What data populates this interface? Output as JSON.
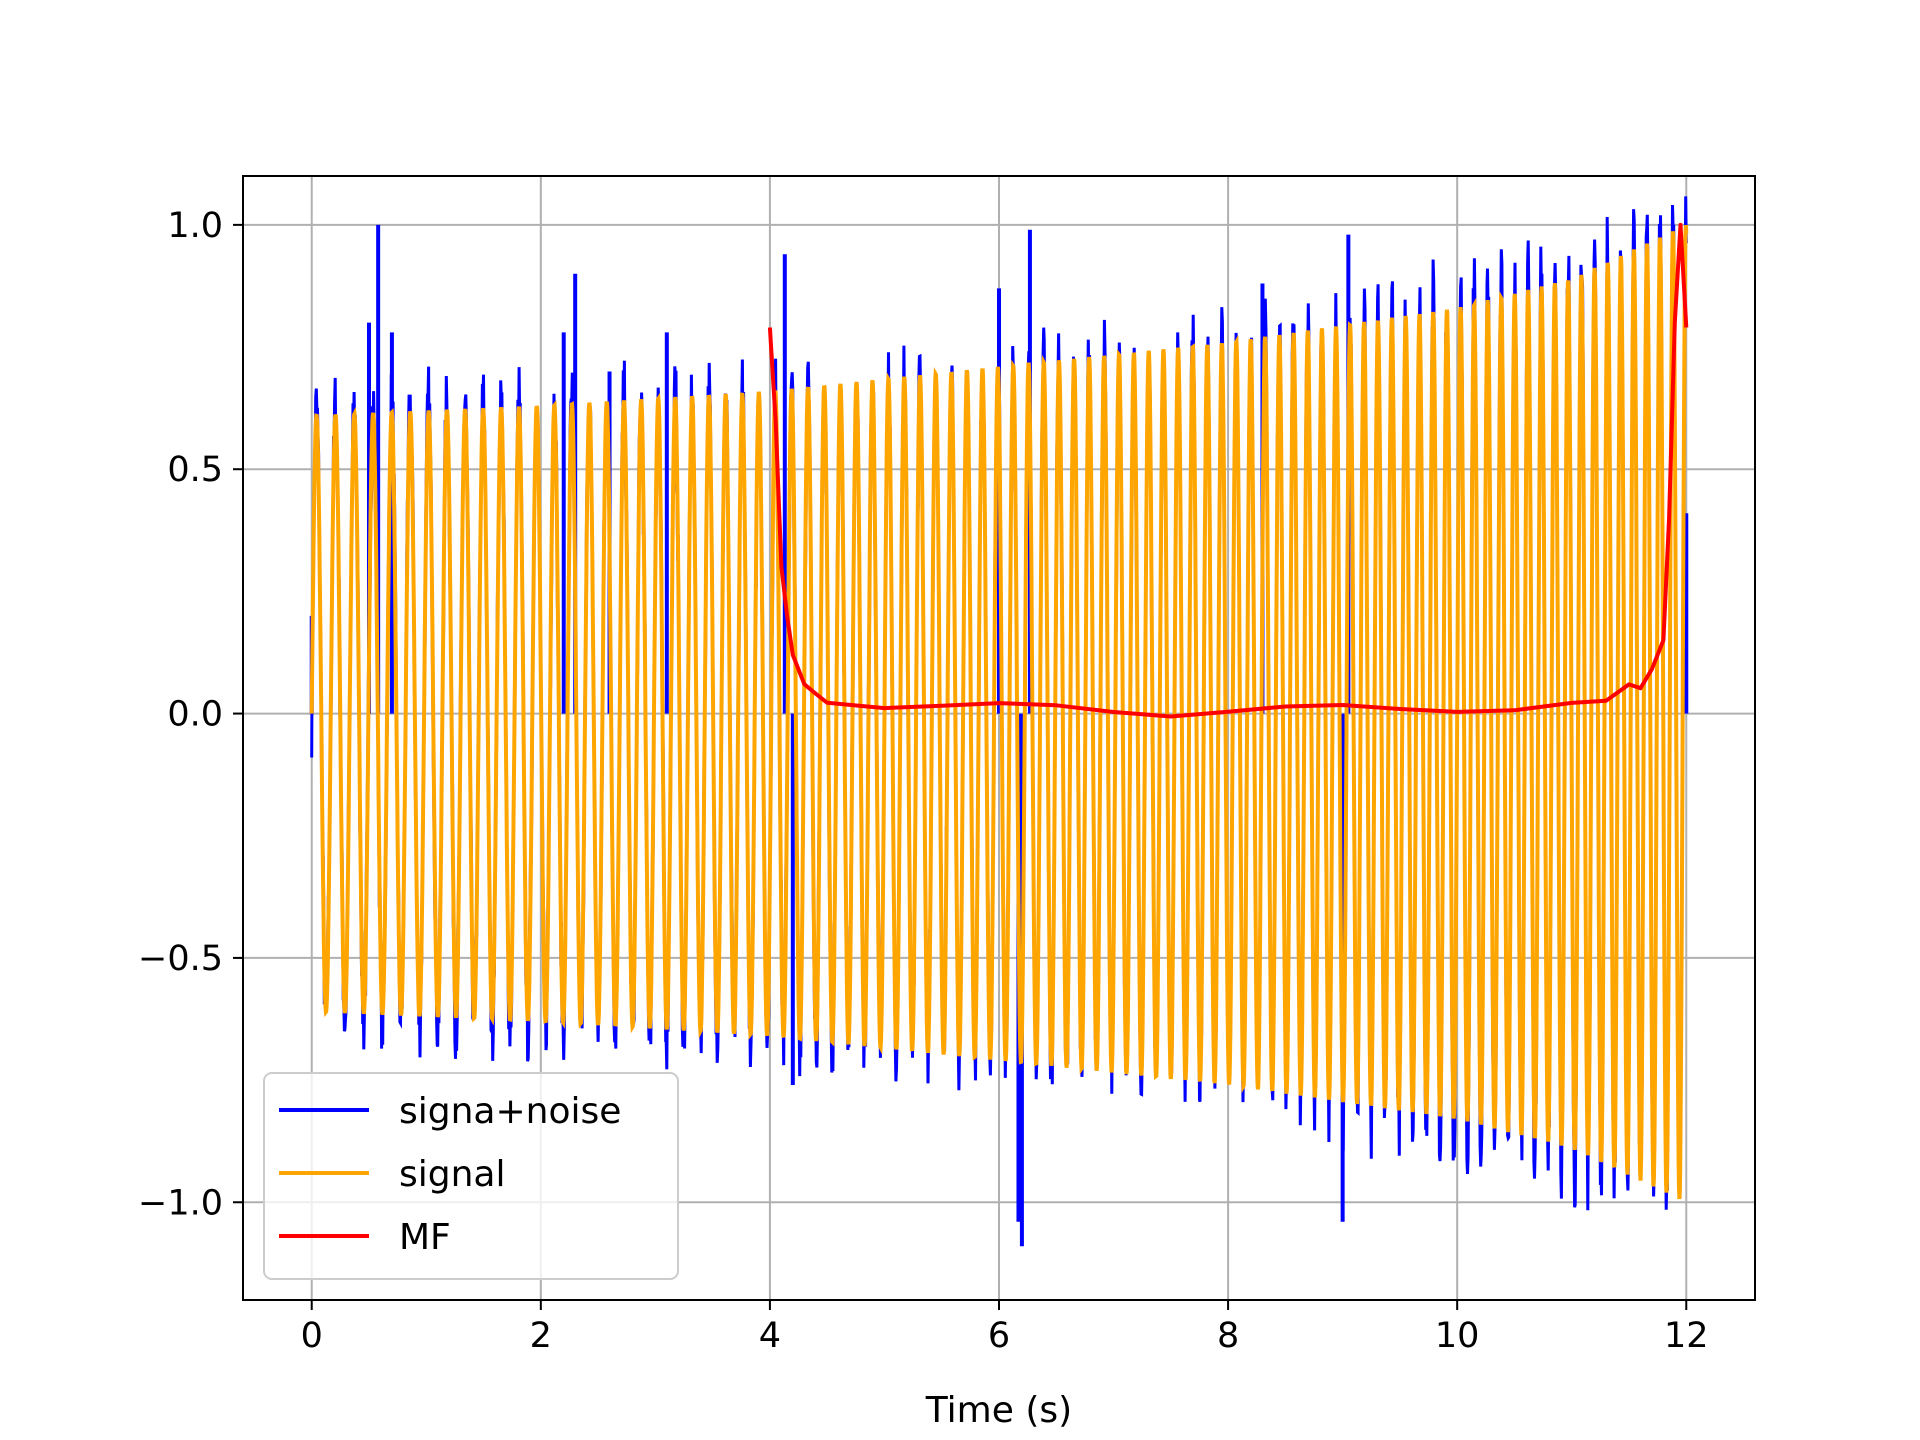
{
  "chart_data": {
    "type": "line",
    "title": "",
    "xlabel": "Time (s)",
    "ylabel": "",
    "xlim": [
      -0.6,
      12.6
    ],
    "ylim": [
      -1.2,
      1.1
    ],
    "xticks": [
      0,
      2,
      4,
      6,
      8,
      10,
      12
    ],
    "xtick_labels": [
      "0",
      "2",
      "4",
      "6",
      "8",
      "10",
      "12"
    ],
    "yticks": [
      1.0,
      0.5,
      0.0,
      -0.5,
      -1.0
    ],
    "ytick_labels": [
      "1.0",
      "0.5",
      "0.0",
      "−0.5",
      "−1.0"
    ],
    "grid": true,
    "legend_position": "lower-left",
    "series": [
      {
        "name": "signa+noise",
        "color": "#0000ff",
        "description_points": {
          "x": [
            0.0,
            0.5,
            0.58,
            0.7,
            2.2,
            2.3,
            2.6,
            3.1,
            4.13,
            4.2,
            6.0,
            6.17,
            6.2,
            6.27,
            8.3,
            9.0,
            9.05,
            12.0
          ],
          "y": [
            0.2,
            0.8,
            1.0,
            0.78,
            0.78,
            0.9,
            0.7,
            0.78,
            0.94,
            -0.76,
            0.87,
            -1.04,
            -1.09,
            0.99,
            0.88,
            -1.04,
            0.98,
            0.41
          ]
        },
        "envelope": {
          "x": [
            0,
            4,
            8,
            12
          ],
          "upper": [
            0.62,
            0.65,
            0.75,
            1.0
          ],
          "lower": [
            -0.62,
            -0.65,
            -0.75,
            -1.0
          ]
        }
      },
      {
        "name": "signal",
        "color": "#ffa500",
        "envelope": {
          "x": [
            0,
            2,
            4,
            6,
            8,
            10,
            11,
            12
          ],
          "upper": [
            0.61,
            0.63,
            0.66,
            0.71,
            0.76,
            0.83,
            0.89,
            1.0
          ],
          "lower": [
            -0.61,
            -0.63,
            -0.66,
            -0.71,
            -0.76,
            -0.83,
            -0.89,
            -1.0
          ]
        }
      },
      {
        "name": "MF",
        "color": "#ff0000",
        "x": [
          4.0,
          4.05,
          4.1,
          4.15,
          4.2,
          4.3,
          4.4,
          4.5,
          5.0,
          5.5,
          6.0,
          6.5,
          7.0,
          7.5,
          8.0,
          8.5,
          9.0,
          9.5,
          10.0,
          10.5,
          11.0,
          11.3,
          11.5,
          11.6,
          11.7,
          11.8,
          11.85,
          11.9,
          11.95,
          12.0
        ],
        "y": [
          0.79,
          0.6,
          0.3,
          0.2,
          0.12,
          0.06,
          0.04,
          0.03,
          0.02,
          0.015,
          0.012,
          0.01,
          0.007,
          0.004,
          0.008,
          0.008,
          0.008,
          0.008,
          0.012,
          0.015,
          0.02,
          0.03,
          0.05,
          0.06,
          0.09,
          0.15,
          0.4,
          0.8,
          1.0,
          0.79
        ]
      }
    ]
  }
}
